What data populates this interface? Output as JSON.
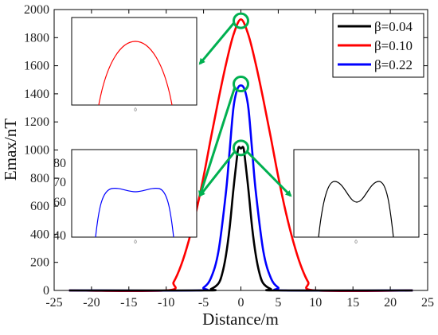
{
  "chart_data": {
    "type": "line",
    "title": "",
    "xlabel": "Distance/m",
    "ylabel": "Emax/nT",
    "xlim": [
      -25,
      25
    ],
    "ylim": [
      0,
      2000
    ],
    "xticks": [
      "-25",
      "-20",
      "-15",
      "-10",
      "-5",
      "0",
      "5",
      "10",
      "15",
      "20",
      "25"
    ],
    "yticks": [
      "0",
      "200",
      "400",
      "600",
      "800",
      "1000",
      "1200",
      "1400",
      "1600",
      "1800",
      "2000"
    ],
    "legend_position": "top-right",
    "series": [
      {
        "name": "β=0.04",
        "color": "#000000",
        "x": [
          -23,
          -5,
          -4,
          -3,
          -2.5,
          -2,
          -1.5,
          -1,
          -0.5,
          -0.3,
          0,
          0.3,
          0.5,
          1,
          1.5,
          2,
          2.5,
          3,
          4,
          5,
          23
        ],
        "y": [
          0,
          0,
          10,
          50,
          120,
          250,
          450,
          720,
          960,
          1020,
          1010,
          1020,
          960,
          720,
          450,
          250,
          120,
          50,
          10,
          0,
          0
        ]
      },
      {
        "name": "β=0.10",
        "color": "#ff0000",
        "x": [
          -23,
          -10,
          -9,
          -8,
          -7,
          -6,
          -5,
          -4,
          -3,
          -2,
          -1,
          0,
          1,
          2,
          3,
          4,
          5,
          6,
          7,
          8,
          9,
          10,
          23
        ],
        "y": [
          0,
          0,
          60,
          180,
          350,
          560,
          810,
          1090,
          1360,
          1610,
          1820,
          1930,
          1820,
          1610,
          1360,
          1090,
          810,
          560,
          350,
          180,
          60,
          0,
          0
        ]
      },
      {
        "name": "β=0.22",
        "color": "#0000ff",
        "x": [
          -23,
          -6,
          -5,
          -4,
          -3,
          -2,
          -1.5,
          -1,
          -0.5,
          0,
          0.5,
          1,
          1.5,
          2,
          3,
          4,
          5,
          6,
          23
        ],
        "y": [
          0,
          0,
          20,
          90,
          280,
          700,
          1000,
          1300,
          1430,
          1460,
          1430,
          1300,
          1000,
          700,
          280,
          90,
          20,
          0,
          0
        ]
      }
    ],
    "insets": [
      {
        "series": "β=0.10",
        "tick_label": "0",
        "yticks": [],
        "shape": "single-peak"
      },
      {
        "series": "β=0.22",
        "tick_label": "0",
        "yticks": [
          "80",
          "70",
          "60",
          "40"
        ],
        "shape": "flat-top"
      },
      {
        "series": "β=0.04",
        "tick_label": "0",
        "yticks": [],
        "shape": "double-peak"
      }
    ],
    "annotation_color": "#00b050"
  }
}
